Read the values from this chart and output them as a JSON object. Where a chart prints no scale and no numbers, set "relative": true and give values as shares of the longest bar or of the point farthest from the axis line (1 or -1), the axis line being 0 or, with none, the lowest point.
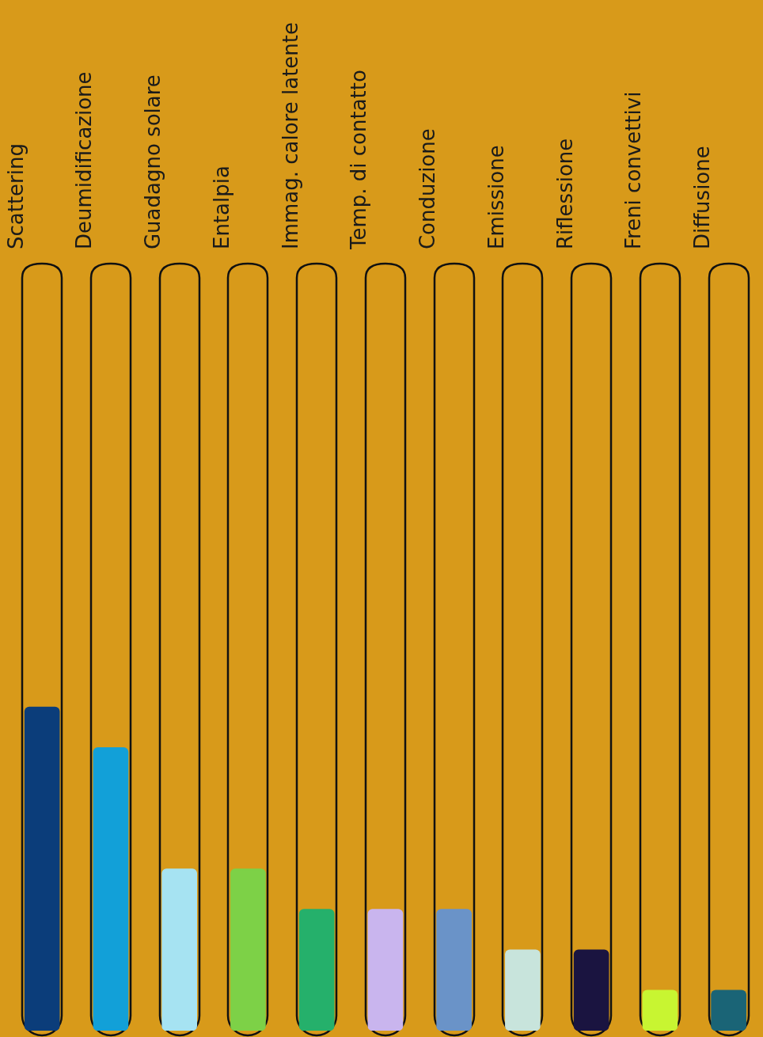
{
  "chart_data": {
    "type": "bar",
    "relative": true,
    "categories": [
      "Scattering",
      "Deumidificazione",
      "Guadagno solare",
      "Entalpia",
      "Immag. calore latente",
      "Temp. di contatto",
      "Conduzione",
      "Emissione",
      "Riflessione",
      "Freni convettivi",
      "Diffusione"
    ],
    "values": [
      1,
      0.875,
      0.5,
      0.5,
      0.375,
      0.375,
      0.375,
      0.25,
      0.25,
      0.125,
      0.125
    ],
    "colors": [
      "#0b3d7a",
      "#12a0d8",
      "#a6e3f2",
      "#7dd147",
      "#25b06b",
      "#c9b5ee",
      "#6a93c8",
      "#c8e4dc",
      "#1a1440",
      "#c8f531",
      "#1a6476"
    ]
  }
}
